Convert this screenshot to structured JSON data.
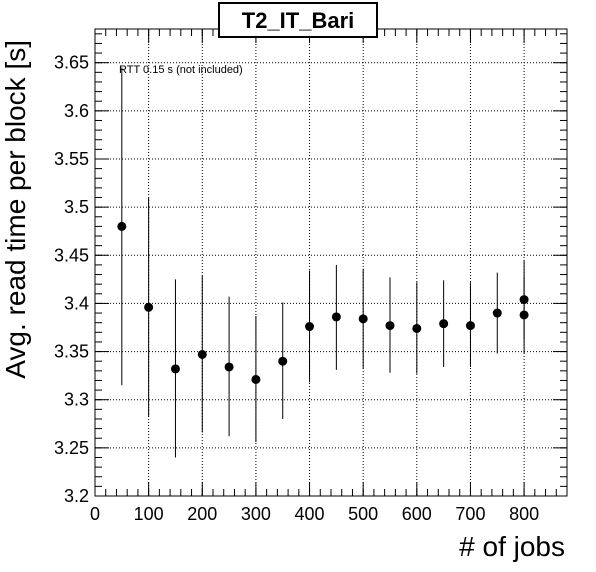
{
  "chart_data": {
    "type": "scatter",
    "title": "T2_IT_Bari",
    "xlabel": "# of jobs",
    "ylabel": "Avg. read time per block [s]",
    "annotation": "RTT 0.15 s (not included)",
    "xlim": [
      0,
      880
    ],
    "ylim": [
      3.2,
      3.685
    ],
    "x_ticks": [
      0,
      100,
      200,
      300,
      400,
      500,
      600,
      700,
      800
    ],
    "y_ticks": [
      3.2,
      3.25,
      3.3,
      3.35,
      3.4,
      3.45,
      3.5,
      3.55,
      3.6,
      3.65
    ],
    "x_tick_labels": [
      "0",
      "100",
      "200",
      "300",
      "400",
      "500",
      "600",
      "700",
      "800"
    ],
    "y_tick_labels": [
      "3.2",
      "3.25",
      "3.3",
      "3.35",
      "3.4",
      "3.45",
      "3.5",
      "3.55",
      "3.6",
      "3.65"
    ],
    "grid": true,
    "series": [
      {
        "marker": "filled-circle",
        "color": "#000000",
        "points": [
          {
            "x": 50,
            "y": 3.48,
            "err_low": 3.315,
            "err_high": 3.645
          },
          {
            "x": 100,
            "y": 3.396,
            "err_low": 3.282,
            "err_high": 3.51
          },
          {
            "x": 150,
            "y": 3.332,
            "err_low": 3.24,
            "err_high": 3.425
          },
          {
            "x": 200,
            "y": 3.347,
            "err_low": 3.266,
            "err_high": 3.429
          },
          {
            "x": 250,
            "y": 3.334,
            "err_low": 3.262,
            "err_high": 3.407
          },
          {
            "x": 300,
            "y": 3.321,
            "err_low": 3.256,
            "err_high": 3.387
          },
          {
            "x": 350,
            "y": 3.34,
            "err_low": 3.28,
            "err_high": 3.401
          },
          {
            "x": 400,
            "y": 3.376,
            "err_low": 3.318,
            "err_high": 3.434
          },
          {
            "x": 450,
            "y": 3.386,
            "err_low": 3.331,
            "err_high": 3.44
          },
          {
            "x": 500,
            "y": 3.384,
            "err_low": 3.332,
            "err_high": 3.436
          },
          {
            "x": 550,
            "y": 3.377,
            "err_low": 3.328,
            "err_high": 3.427
          },
          {
            "x": 600,
            "y": 3.374,
            "err_low": 3.327,
            "err_high": 3.422
          },
          {
            "x": 650,
            "y": 3.379,
            "err_low": 3.334,
            "err_high": 3.424
          },
          {
            "x": 700,
            "y": 3.377,
            "err_low": 3.334,
            "err_high": 3.422
          },
          {
            "x": 750,
            "y": 3.39,
            "err_low": 3.348,
            "err_high": 3.432
          },
          {
            "x": 800,
            "y": 3.404,
            "err_low": 3.363,
            "err_high": 3.445
          },
          {
            "x": 800,
            "y": 3.388,
            "err_low": 3.348,
            "err_high": 3.428
          }
        ]
      }
    ]
  }
}
